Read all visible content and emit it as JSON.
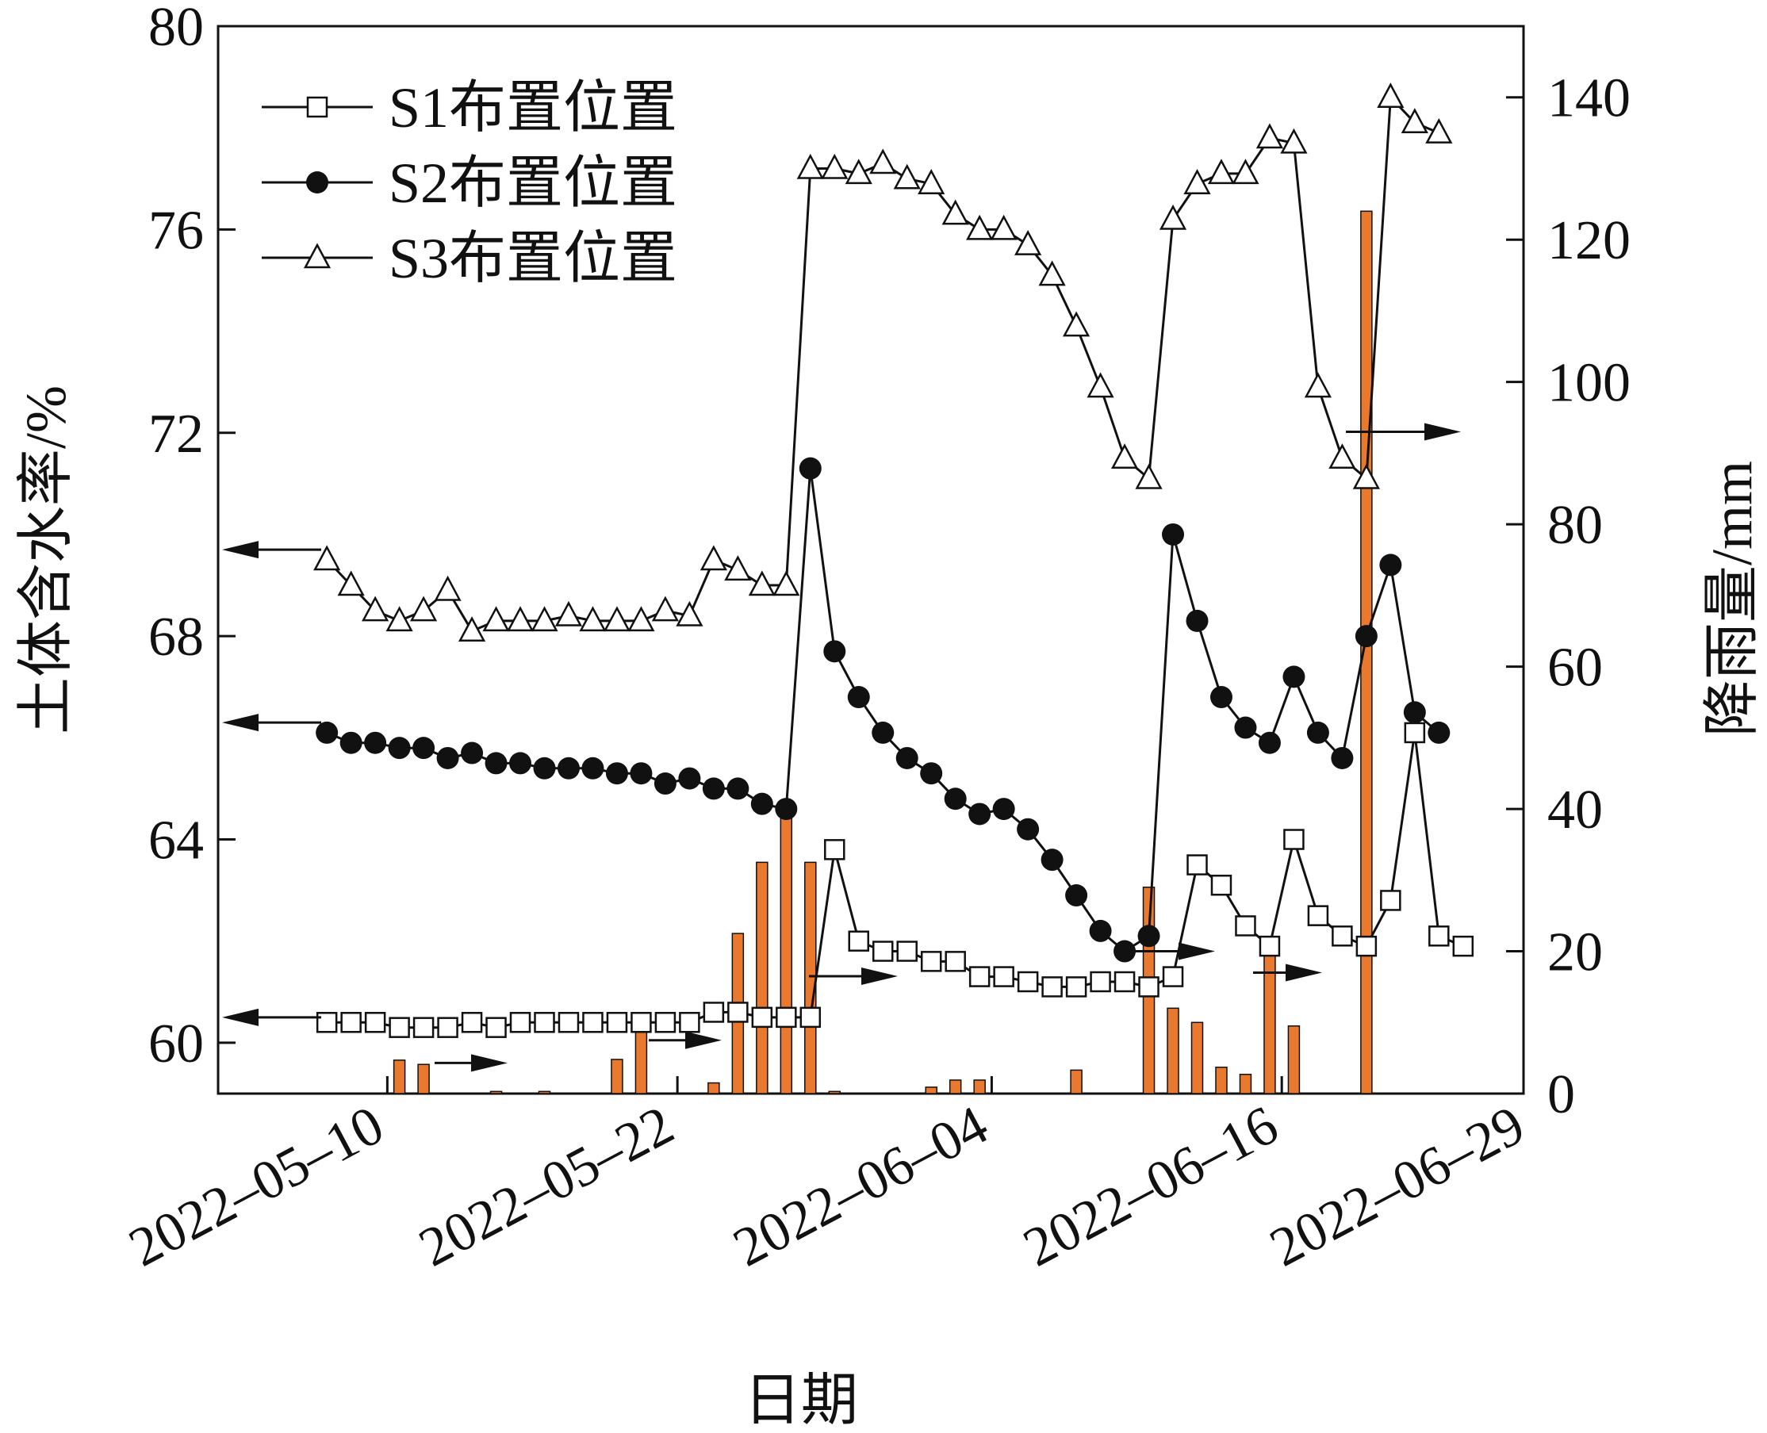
{
  "chart_data": {
    "type": "line+bar",
    "xlabel": "日期",
    "ylabel_left": "土体含水率/%",
    "ylabel_right": "降雨量/mm",
    "left_axis": {
      "min": 59,
      "max": 80,
      "ticks": [
        60,
        64,
        68,
        72,
        76,
        80
      ]
    },
    "right_axis": {
      "min": 0,
      "max": 150,
      "ticks": [
        0,
        20,
        40,
        60,
        80,
        100,
        120,
        140
      ]
    },
    "x_axis": {
      "min_day": 0,
      "max_day": 54,
      "ticks": [
        {
          "day": 7,
          "label": "2022–05–10"
        },
        {
          "day": 19,
          "label": "2022–05–22"
        },
        {
          "day": 32,
          "label": "2022–06–04"
        },
        {
          "day": 44,
          "label": "2022–06–16"
        },
        {
          "day": 57,
          "label": "2022–06–29"
        }
      ]
    },
    "legend": [
      "S1布置位置",
      "S2布置位置",
      "S3布置位置"
    ],
    "series": [
      {
        "name": "S1布置位置",
        "marker": "square-open",
        "points": [
          [
            4.5,
            60.4
          ],
          [
            5.5,
            60.4
          ],
          [
            6.5,
            60.4
          ],
          [
            7.5,
            60.3
          ],
          [
            8.5,
            60.3
          ],
          [
            9.5,
            60.3
          ],
          [
            10.5,
            60.4
          ],
          [
            11.5,
            60.3
          ],
          [
            12.5,
            60.4
          ],
          [
            13.5,
            60.4
          ],
          [
            14.5,
            60.4
          ],
          [
            15.5,
            60.4
          ],
          [
            16.5,
            60.4
          ],
          [
            17.5,
            60.4
          ],
          [
            18.5,
            60.4
          ],
          [
            19.5,
            60.4
          ],
          [
            20.5,
            60.6
          ],
          [
            21.5,
            60.6
          ],
          [
            22.5,
            60.5
          ],
          [
            23.5,
            60.5
          ],
          [
            24.5,
            60.5
          ],
          [
            25.5,
            63.8
          ],
          [
            26.5,
            62.0
          ],
          [
            27.5,
            61.8
          ],
          [
            28.5,
            61.8
          ],
          [
            29.5,
            61.6
          ],
          [
            30.5,
            61.6
          ],
          [
            31.5,
            61.3
          ],
          [
            32.5,
            61.3
          ],
          [
            33.5,
            61.2
          ],
          [
            34.5,
            61.1
          ],
          [
            35.5,
            61.1
          ],
          [
            36.5,
            61.2
          ],
          [
            37.5,
            61.2
          ],
          [
            38.5,
            61.1
          ],
          [
            39.5,
            61.3
          ],
          [
            40.5,
            63.5
          ],
          [
            41.5,
            63.1
          ],
          [
            42.5,
            62.3
          ],
          [
            43.5,
            61.9
          ],
          [
            44.5,
            64.0
          ],
          [
            45.5,
            62.5
          ],
          [
            46.5,
            62.1
          ],
          [
            47.5,
            61.9
          ],
          [
            48.5,
            62.8
          ],
          [
            49.5,
            66.1
          ],
          [
            50.5,
            62.1
          ],
          [
            51.5,
            61.9
          ]
        ]
      },
      {
        "name": "S2布置位置",
        "marker": "circle-filled",
        "points": [
          [
            4.5,
            66.1
          ],
          [
            5.5,
            65.9
          ],
          [
            6.5,
            65.9
          ],
          [
            7.5,
            65.8
          ],
          [
            8.5,
            65.8
          ],
          [
            9.5,
            65.6
          ],
          [
            10.5,
            65.7
          ],
          [
            11.5,
            65.5
          ],
          [
            12.5,
            65.5
          ],
          [
            13.5,
            65.4
          ],
          [
            14.5,
            65.4
          ],
          [
            15.5,
            65.4
          ],
          [
            16.5,
            65.3
          ],
          [
            17.5,
            65.3
          ],
          [
            18.5,
            65.1
          ],
          [
            19.5,
            65.2
          ],
          [
            20.5,
            65.0
          ],
          [
            21.5,
            65.0
          ],
          [
            22.5,
            64.7
          ],
          [
            23.5,
            64.6
          ],
          [
            24.5,
            71.3
          ],
          [
            25.5,
            67.7
          ],
          [
            26.5,
            66.8
          ],
          [
            27.5,
            66.1
          ],
          [
            28.5,
            65.6
          ],
          [
            29.5,
            65.3
          ],
          [
            30.5,
            64.8
          ],
          [
            31.5,
            64.5
          ],
          [
            32.5,
            64.6
          ],
          [
            33.5,
            64.2
          ],
          [
            34.5,
            63.6
          ],
          [
            35.5,
            62.9
          ],
          [
            36.5,
            62.2
          ],
          [
            37.5,
            61.8
          ],
          [
            38.5,
            62.1
          ],
          [
            39.5,
            70.0
          ],
          [
            40.5,
            68.3
          ],
          [
            41.5,
            66.8
          ],
          [
            42.5,
            66.2
          ],
          [
            43.5,
            65.9
          ],
          [
            44.5,
            67.2
          ],
          [
            45.5,
            66.1
          ],
          [
            46.5,
            65.6
          ],
          [
            47.5,
            68.0
          ],
          [
            48.5,
            69.4
          ],
          [
            49.5,
            66.5
          ],
          [
            50.5,
            66.1
          ]
        ]
      },
      {
        "name": "S3布置位置",
        "marker": "triangle-open",
        "points": [
          [
            4.5,
            69.5
          ],
          [
            5.5,
            69.0
          ],
          [
            6.5,
            68.5
          ],
          [
            7.5,
            68.3
          ],
          [
            8.5,
            68.5
          ],
          [
            9.5,
            68.9
          ],
          [
            10.5,
            68.1
          ],
          [
            11.5,
            68.3
          ],
          [
            12.5,
            68.3
          ],
          [
            13.5,
            68.3
          ],
          [
            14.5,
            68.4
          ],
          [
            15.5,
            68.3
          ],
          [
            16.5,
            68.3
          ],
          [
            17.5,
            68.3
          ],
          [
            18.5,
            68.5
          ],
          [
            19.5,
            68.4
          ],
          [
            20.5,
            69.5
          ],
          [
            21.5,
            69.3
          ],
          [
            22.5,
            69.0
          ],
          [
            23.5,
            69.0
          ],
          [
            24.5,
            77.2
          ],
          [
            25.5,
            77.2
          ],
          [
            26.5,
            77.1
          ],
          [
            27.5,
            77.3
          ],
          [
            28.5,
            77.0
          ],
          [
            29.5,
            76.9
          ],
          [
            30.5,
            76.3
          ],
          [
            31.5,
            76.0
          ],
          [
            32.5,
            76.0
          ],
          [
            33.5,
            75.7
          ],
          [
            34.5,
            75.1
          ],
          [
            35.5,
            74.1
          ],
          [
            36.5,
            72.9
          ],
          [
            37.5,
            71.5
          ],
          [
            38.5,
            71.1
          ],
          [
            39.5,
            76.2
          ],
          [
            40.5,
            76.9
          ],
          [
            41.5,
            77.1
          ],
          [
            42.5,
            77.1
          ],
          [
            43.5,
            77.8
          ],
          [
            44.5,
            77.7
          ],
          [
            45.5,
            72.9
          ],
          [
            46.5,
            71.5
          ],
          [
            47.5,
            71.1
          ],
          [
            48.5,
            78.6
          ],
          [
            49.5,
            78.1
          ],
          [
            50.5,
            77.9
          ]
        ]
      }
    ],
    "rainfall": {
      "name": "降雨量",
      "color": "#E8792E",
      "bars": [
        [
          7.5,
          4.7
        ],
        [
          8.5,
          4.1
        ],
        [
          11.5,
          0.3
        ],
        [
          13.5,
          0.3
        ],
        [
          16.5,
          4.8
        ],
        [
          17.5,
          9.0
        ],
        [
          20.5,
          1.5
        ],
        [
          21.5,
          22.5
        ],
        [
          22.5,
          32.5
        ],
        [
          23.5,
          40.5
        ],
        [
          24.5,
          32.5
        ],
        [
          25.5,
          0.3
        ],
        [
          29.5,
          0.9
        ],
        [
          30.5,
          1.9
        ],
        [
          31.5,
          1.9
        ],
        [
          35.5,
          3.3
        ],
        [
          38.5,
          29.0
        ],
        [
          39.5,
          12.0
        ],
        [
          40.5,
          10.0
        ],
        [
          41.5,
          3.7
        ],
        [
          42.5,
          2.7
        ],
        [
          43.5,
          21.5
        ],
        [
          44.5,
          9.5
        ],
        [
          47.5,
          124.0
        ]
      ]
    },
    "annotations": [
      {
        "kind": "axis-arrow",
        "direction": "left",
        "target": "S3布置位置"
      },
      {
        "kind": "axis-arrow",
        "direction": "left",
        "target": "S2布置位置"
      },
      {
        "kind": "axis-arrow",
        "direction": "left",
        "target": "S1布置位置"
      },
      {
        "kind": "axis-arrow",
        "direction": "right",
        "target": "降雨量"
      }
    ]
  }
}
